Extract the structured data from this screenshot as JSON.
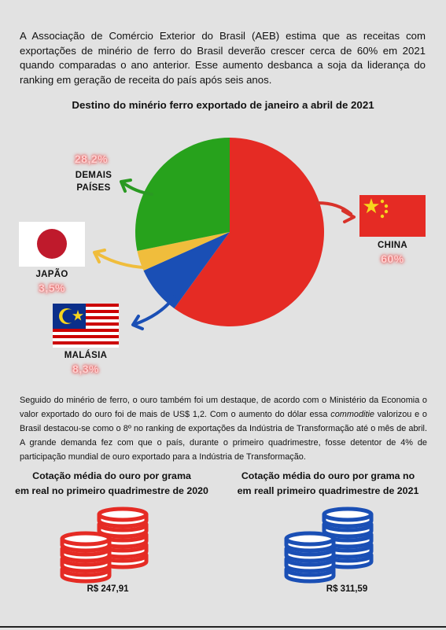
{
  "intro_text": "A Associação de Comércio Exterior do Brasil (AEB) estima que as receitas com exportações de minério de ferro do Brasil deverão crescer cerca de 60% em 2021 quando comparadas o ano anterior. Esse aumento desbanca a soja da liderança do ranking em geração de receita do país após seis anos.",
  "chart_data": {
    "type": "pie",
    "title": "Destino do minério ferro exportado de janeiro a abril de 2021",
    "slices": [
      {
        "label": "CHINA",
        "value": 60,
        "value_label": "60%",
        "color": "#e52b24"
      },
      {
        "label": "MALÁSIA",
        "value": 8.3,
        "value_label": "8,3%",
        "color": "#1a4fb5"
      },
      {
        "label": "JAPÃO",
        "value": 3.5,
        "value_label": "3,5%",
        "color": "#f0bd3c"
      },
      {
        "label": "DEMAIS PAÍSES",
        "value": 28.2,
        "value_label": "28,2%",
        "color": "#27a21c"
      }
    ]
  },
  "labels": {
    "china": "CHINA",
    "japao": "JAPÃO",
    "malasia": "MALÁSIA",
    "demais_line1": "DEMAIS",
    "demais_line2": "PAÍSES"
  },
  "body_text": {
    "part1": "Seguido do minério de ferro, o ouro também foi um destaque, de acordo com o Ministério da Economia o valor exportado do ouro foi de mais de US$ 1,2. Com o aumento do dólar  essa ",
    "italic": "commoditie",
    "part2": " valorizou e o Brasil destacou-se como o 8º no ranking de exportações da Indústria de Transformação até o mês de abril. A grande demanda fez com que o país, durante o primeiro quadrimestre, fosse detentor de 4% de participação mundial de ouro exportado para a Indústria de Transformação."
  },
  "gold": {
    "left": {
      "title_line1": "Cotação média do ouro por grama",
      "title_line2": "em real no primeiro quadrimestre de 2020",
      "price": "R$ 247,91",
      "color": "#e52b24"
    },
    "right": {
      "title_line1": "Cotação média do ouro por grama no",
      "title_line2": "em reall primeiro quadrimestre de 2021",
      "price": "R$ 311,59",
      "color": "#1a4fb5"
    }
  }
}
